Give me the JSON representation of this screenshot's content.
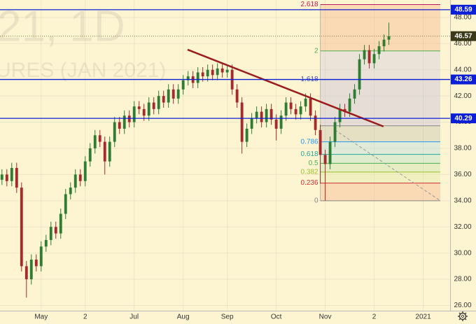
{
  "chart_data": {
    "type": "candlestick",
    "watermark": [
      "21, 1D",
      "URES (JAN 2021)"
    ],
    "open": [
      35.6,
      36,
      35.5,
      36.5,
      35,
      29,
      28,
      29.5,
      29,
      30.5,
      31,
      32,
      31.5,
      33,
      34.5,
      35,
      36,
      35.5,
      37,
      38,
      39,
      38.5,
      37,
      38.5,
      40,
      39.5,
      40.5,
      40,
      41.2,
      41,
      40.5,
      41.5,
      41,
      42,
      41.5,
      42.5,
      41.8,
      42.5,
      43.2,
      43.5,
      43,
      43.8,
      43.5,
      44,
      43.6,
      44.1,
      43.8,
      44,
      42.5,
      41.5,
      38.5,
      39.5,
      40.3,
      40.8,
      40,
      41,
      40.2,
      39.5,
      40.5,
      41.5,
      41,
      40.6,
      41.2,
      41.8,
      40.5,
      39.4,
      37.5,
      36.8,
      38.5,
      40,
      41,
      40.8,
      41.8,
      42.5,
      44.8,
      45.5,
      44.5,
      45.2,
      45.8,
      46.3
    ],
    "high": [
      36.4,
      36.4,
      36.9,
      36.9,
      35.4,
      29.4,
      29.9,
      29.9,
      30.9,
      31.4,
      32.4,
      32.4,
      33.4,
      34.9,
      35.4,
      36.4,
      36.4,
      37.4,
      38.4,
      39.4,
      39.4,
      38.9,
      38.9,
      40.4,
      40.4,
      40.9,
      40.9,
      41.6,
      41.6,
      41.4,
      41.9,
      41.9,
      42.4,
      42.4,
      42.9,
      42.9,
      42.9,
      43.6,
      43.9,
      43.9,
      44.2,
      44.2,
      44.4,
      44.4,
      44.5,
      44.5,
      44.4,
      44.4,
      42.9,
      41.9,
      39.9,
      40.7,
      41.2,
      41.2,
      41.4,
      41.4,
      40.6,
      40.9,
      41.9,
      41.9,
      41.4,
      41.6,
      42.2,
      42.2,
      40.9,
      39.8,
      37.9,
      38.9,
      40.4,
      41.4,
      41.4,
      42.2,
      42.9,
      45.2,
      45.9,
      45.9,
      45.6,
      46.2,
      46.7,
      47.6
    ],
    "low": [
      35.2,
      35.1,
      35.1,
      34.6,
      28.6,
      26.6,
      27.6,
      28.6,
      28.6,
      30.1,
      30.6,
      31.1,
      31.1,
      32.6,
      34.1,
      34.6,
      35.1,
      35.1,
      36.6,
      37.6,
      38.1,
      36,
      36.6,
      38.1,
      39.1,
      39.1,
      39.6,
      39.6,
      40.6,
      40.1,
      40.1,
      40.6,
      40.6,
      41.1,
      41.1,
      41.4,
      41.4,
      42.1,
      42.8,
      42.6,
      42.6,
      43.1,
      43.1,
      43.2,
      43.2,
      43.4,
      43.4,
      42.1,
      41.1,
      37.6,
      38.1,
      39.1,
      39.9,
      39.6,
      39.6,
      39.8,
      38.6,
      39.1,
      40.1,
      40.6,
      40.2,
      40.2,
      40.8,
      40.1,
      39,
      35.3,
      34,
      36.4,
      38.1,
      39.6,
      40.4,
      40.4,
      41.4,
      42.1,
      44.4,
      44.1,
      44.1,
      44.8,
      45.4,
      45.9
    ],
    "close": [
      36,
      35.5,
      36.5,
      35,
      29,
      28,
      29.5,
      29,
      30.5,
      31,
      32,
      31.5,
      33,
      34.5,
      35,
      36,
      35.5,
      37,
      38,
      39,
      38.5,
      37,
      38.5,
      40,
      39.5,
      40.5,
      40,
      41.2,
      41,
      40.5,
      41.5,
      41,
      42,
      41.5,
      42.5,
      41.8,
      42.5,
      43.2,
      43.5,
      43,
      43.8,
      43.5,
      44,
      43.6,
      44.1,
      43.8,
      44,
      42.5,
      41.5,
      38.5,
      39.5,
      40.3,
      40.8,
      40,
      41,
      40.2,
      39.5,
      40.5,
      41.5,
      41,
      40.6,
      41.2,
      41.8,
      40.5,
      39.4,
      37.5,
      36.8,
      38.5,
      40,
      41,
      40.8,
      41.8,
      42.5,
      44.8,
      45.5,
      44.5,
      45.2,
      45.8,
      46.3,
      46.57
    ],
    "up_color": "#2e7d32",
    "down_color": "#a52a2a",
    "xlim": [
      -0.4,
      91.5
    ],
    "ylim": [
      25.6,
      49.33
    ],
    "xticks": [
      {
        "value": 8,
        "label": "May"
      },
      {
        "value": 17,
        "label": "2"
      },
      {
        "value": 27,
        "label": "Jul"
      },
      {
        "value": 37,
        "label": "Aug"
      },
      {
        "value": 46,
        "label": "Sep"
      },
      {
        "value": 56,
        "label": "Oct"
      },
      {
        "value": 66,
        "label": "Nov"
      },
      {
        "value": 76,
        "label": "2"
      },
      {
        "value": 86,
        "label": "2021"
      }
    ],
    "yticks": [
      {
        "value": 26,
        "label": "26.00"
      },
      {
        "value": 28,
        "label": "28.00"
      },
      {
        "value": 30,
        "label": "30.00"
      },
      {
        "value": 32,
        "label": "32.00"
      },
      {
        "value": 34,
        "label": "34.00"
      },
      {
        "value": 36,
        "label": "36.00"
      },
      {
        "value": 38,
        "label": "38.00"
      },
      {
        "value": 40,
        "label": "40.00"
      },
      {
        "value": 42,
        "label": "42.00"
      },
      {
        "value": 44,
        "label": "44.00"
      },
      {
        "value": 46,
        "label": "46.00"
      },
      {
        "value": 48,
        "label": "48.00"
      }
    ],
    "grid": true,
    "levels": [
      48.59,
      43.26,
      40.29
    ],
    "level_color": "#0a1fd6",
    "last_price": 46.57,
    "fib": {
      "x": [
        65,
        89.5
      ],
      "labels": [
        "0",
        "0.236",
        "0.382",
        "0.5",
        "0.618",
        "0.786",
        "1.618",
        "2",
        "2.618"
      ],
      "values": [
        34.0,
        35.35,
        36.19,
        36.86,
        37.54,
        38.5,
        43.26,
        45.44,
        48.98
      ],
      "colors": [
        "#888888",
        "#d32f2f",
        "#9bbf2b",
        "#4caf50",
        "#26a69a",
        "#2196f3",
        "#3f51b5",
        "#4caf50",
        "#c2185b"
      ],
      "band_edge": 39.72
    },
    "trendline": {
      "x": [
        37.9,
        77.9
      ],
      "y": [
        45.54,
        39.67
      ],
      "color": "#9b1c1c"
    },
    "projection": {
      "x": [
        68,
        89.5
      ],
      "y": [
        39.4,
        34.0
      ]
    }
  }
}
